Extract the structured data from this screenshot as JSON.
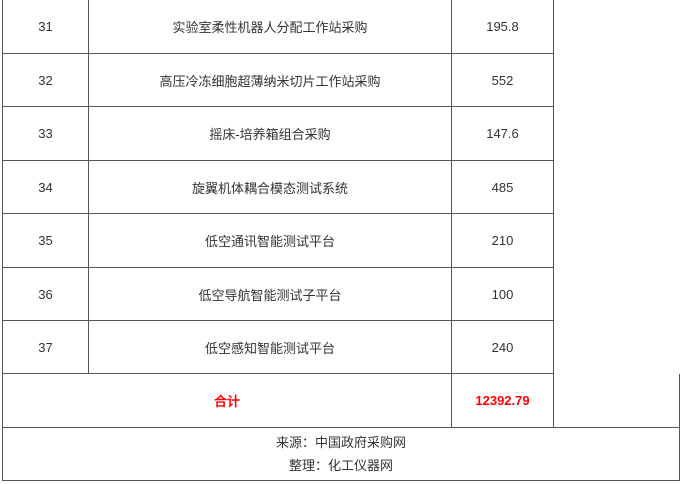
{
  "rows": [
    {
      "no": "31",
      "name": "实验室柔性机器人分配工作站采购",
      "amount": "195.8"
    },
    {
      "no": "32",
      "name": "高压冷冻细胞超薄纳米切片工作站采购",
      "amount": "552"
    },
    {
      "no": "33",
      "name": "摇床-培养箱组合采购",
      "amount": "147.6"
    },
    {
      "no": "34",
      "name": "旋翼机体耦合模态测试系统",
      "amount": "485"
    },
    {
      "no": "35",
      "name": "低空通讯智能测试平台",
      "amount": "210"
    },
    {
      "no": "36",
      "name": "低空导航智能测试子平台",
      "amount": "100"
    },
    {
      "no": "37",
      "name": "低空感知智能测试平台",
      "amount": "240"
    }
  ],
  "total": {
    "label": "合计",
    "amount": "12392.79"
  },
  "footer": {
    "source": "来源：中国政府采购网",
    "editor": "整理：化工仪器网"
  },
  "colors": {
    "total_text": "#ff0000",
    "border": "#555555"
  }
}
